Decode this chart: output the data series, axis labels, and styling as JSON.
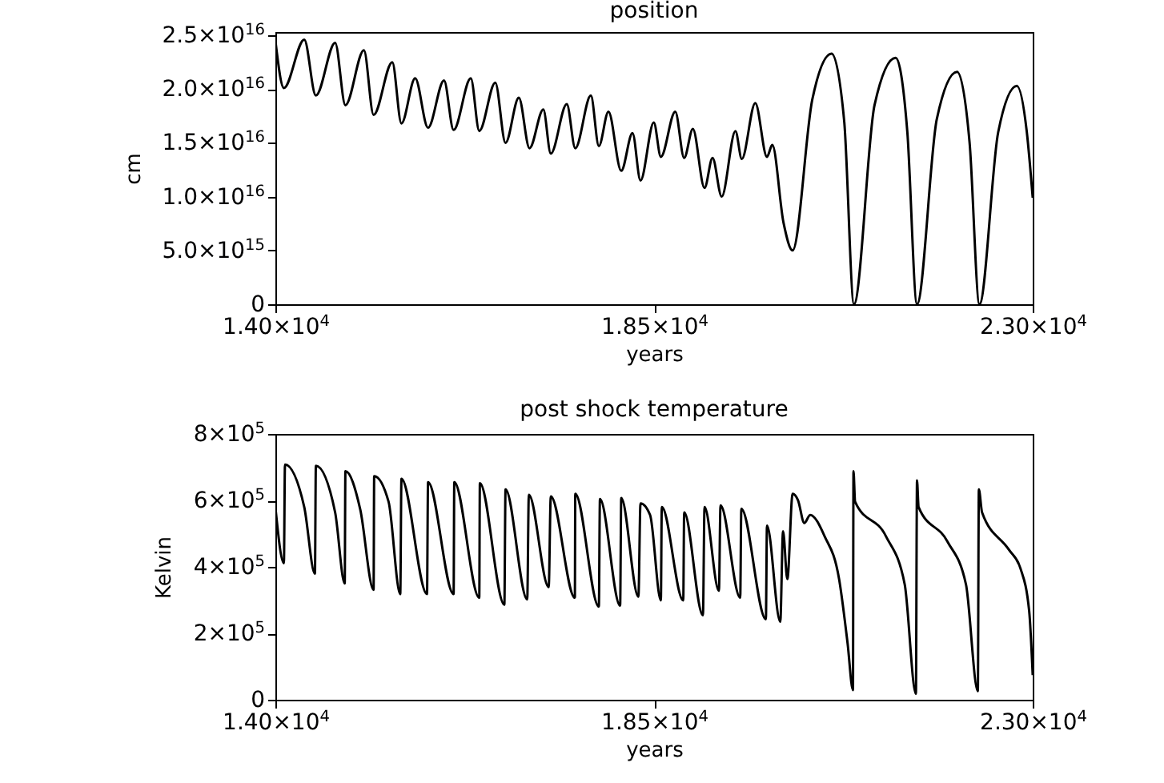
{
  "chart_data": [
    {
      "type": "line",
      "title": "position",
      "xlabel": "years",
      "ylabel": "cm",
      "color": "#000000",
      "xlim": [
        14000,
        23000
      ],
      "ylim": [
        0,
        2.53e+16
      ],
      "xticks": [
        {
          "value": 14000,
          "label": "1.40×10$^{4}$"
        },
        {
          "value": 18500,
          "label": "1.85×10$^{4}$"
        },
        {
          "value": 23000,
          "label": "2.30×10$^{4}$"
        }
      ],
      "yticks": [
        0,
        {
          "value": 5000000000000000.0,
          "label": "5.0×10$^{15}$"
        },
        {
          "value": 1e+16,
          "label": "1.0×10$^{16}$"
        },
        {
          "value": 1.5e+16,
          "label": "1.5×10$^{16}$"
        },
        {
          "value": 2e+16,
          "label": "2.0×10$^{16}$"
        },
        {
          "value": 2.5e+16,
          "label": "2.5×10$^{16}$"
        }
      ],
      "x": [
        14000,
        14101,
        14343,
        14481,
        14710,
        14832,
        15052,
        15167,
        15389,
        15498,
        15661,
        15814,
        16004,
        16118,
        16322,
        16423,
        16613,
        16735,
        16893,
        17020,
        17184,
        17273,
        17463,
        17564,
        17749,
        17844,
        17958,
        18110,
        18244,
        18339,
        18497,
        18581,
        18752,
        18858,
        18961,
        19100,
        19195,
        19304,
        19467,
        19543,
        19703,
        19842,
        19905,
        20038,
        20147,
        20380,
        20609,
        20760,
        20876,
        21120,
        21370,
        21510,
        21625,
        21860,
        22101,
        22250,
        22367,
        22590,
        22811,
        22930,
        23000
      ],
      "values": [
        2.45e+16,
        2.01e+16,
        2.46e+16,
        1.94e+16,
        2.43e+16,
        1.85e+16,
        2.36e+16,
        1.76e+16,
        2.25e+16,
        1.68e+16,
        2.1e+16,
        1.64e+16,
        2.08e+16,
        1.62e+16,
        2.1e+16,
        1.61e+16,
        2.06e+16,
        1.5e+16,
        1.92e+16,
        1.45e+16,
        1.81e+16,
        1.4e+16,
        1.86e+16,
        1.45e+16,
        1.94e+16,
        1.47e+16,
        1.79e+16,
        1.24e+16,
        1.59e+16,
        1.15e+16,
        1.69e+16,
        1.37e+16,
        1.79e+16,
        1.36e+16,
        1.63e+16,
        1.08e+16,
        1.36e+16,
        1e+16,
        1.61e+16,
        1.35e+16,
        1.87e+16,
        1.37e+16,
        1.48e+16,
        7600000000000000.0,
        5000000000000000.0,
        1.9e+16,
        2.33e+16,
        1.7e+16,
        0,
        1.85e+16,
        2.29e+16,
        1.6e+16,
        0,
        1.72e+16,
        2.16e+16,
        1.5e+16,
        0,
        1.6e+16,
        2.03e+16,
        1.6e+16,
        9900000000000000.0
      ]
    },
    {
      "type": "line",
      "title": "post shock temperature",
      "xlabel": "years",
      "ylabel": "Kelvin",
      "color": "#000000",
      "xlim": [
        14000,
        23000
      ],
      "ylim": [
        0,
        800000
      ],
      "xticks": [
        {
          "value": 14000,
          "label": "1.40×10$^{4}$"
        },
        {
          "value": 18500,
          "label": "1.85×10$^{4}$"
        },
        {
          "value": 23000,
          "label": "2.30×10$^{4}$"
        }
      ],
      "yticks": [
        0,
        {
          "value": 200000,
          "label": "2×10$^{5}$"
        },
        {
          "value": 400000,
          "label": "4×10$^{5}$"
        },
        {
          "value": 600000,
          "label": "6×10$^{5}$"
        },
        {
          "value": 800000,
          "label": "8×10$^{5}$"
        }
      ],
      "x": [
        14000,
        14101,
        14114,
        14343,
        14470,
        14481,
        14710,
        14824,
        14832,
        15009,
        15167,
        15174,
        15345,
        15484,
        15498,
        15802,
        15814,
        16118,
        16126,
        16423,
        16430,
        16721,
        16735,
        16993,
        17012,
        17248,
        17273,
        17559,
        17564,
        17844,
        17857,
        18097,
        18110,
        18314,
        18339,
        18453,
        18581,
        18592,
        18847,
        18858,
        19081,
        19100,
        19271,
        19290,
        19524,
        19537,
        19829,
        19842,
        20000,
        20033,
        20084,
        20147,
        20210,
        20286,
        20356,
        20527,
        20699,
        20800,
        20864,
        20870,
        20889,
        21256,
        21479,
        21612,
        21625,
        21644,
        21987,
        22207,
        22348,
        22360,
        22398,
        22716,
        22855,
        22958,
        23000
      ],
      "values": [
        580000,
        411000,
        708000,
        580000,
        379000,
        704000,
        564000,
        350000,
        688000,
        572000,
        331000,
        673000,
        596000,
        318000,
        665000,
        318000,
        655000,
        318000,
        655000,
        307000,
        652000,
        286000,
        633000,
        302000,
        617000,
        339000,
        612000,
        307000,
        620000,
        280000,
        604000,
        283000,
        607000,
        310000,
        591000,
        556000,
        299000,
        580000,
        299000,
        564000,
        254000,
        580000,
        328000,
        585000,
        307000,
        575000,
        242000,
        524000,
        235000,
        507000,
        363000,
        620000,
        601000,
        532000,
        556000,
        492000,
        363000,
        170000,
        29000,
        688000,
        596000,
        492000,
        347000,
        18000,
        660000,
        580000,
        476000,
        347000,
        26000,
        633000,
        564000,
        452000,
        395000,
        267000,
        74000
      ]
    }
  ]
}
